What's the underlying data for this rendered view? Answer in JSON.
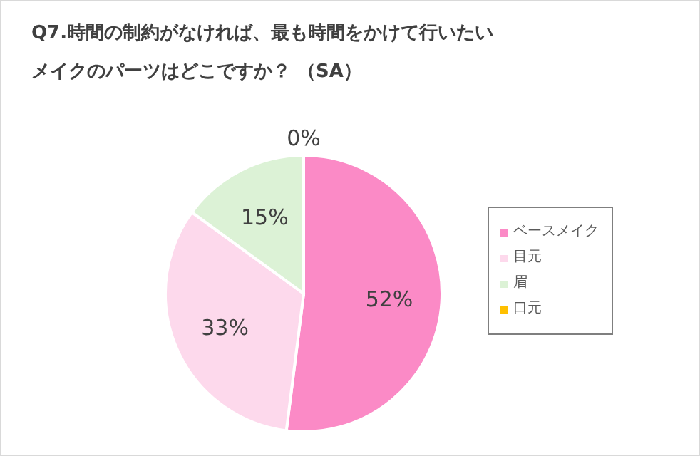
{
  "chart_data": {
    "type": "pie",
    "title": "Q7.時間の制約がなければ、最も時間をかけて行いたいメイクのパーツはどこですか？ （SA）",
    "categories": [
      "ベースメイク",
      "目元",
      "眉",
      "口元"
    ],
    "values": [
      52,
      33,
      15,
      0
    ],
    "value_labels": [
      "52%",
      "33%",
      "15%",
      "0%"
    ],
    "colors": [
      "#fb8ac6",
      "#fdd9ec",
      "#dcf2d6",
      "#ffc000"
    ],
    "legend": "right"
  }
}
